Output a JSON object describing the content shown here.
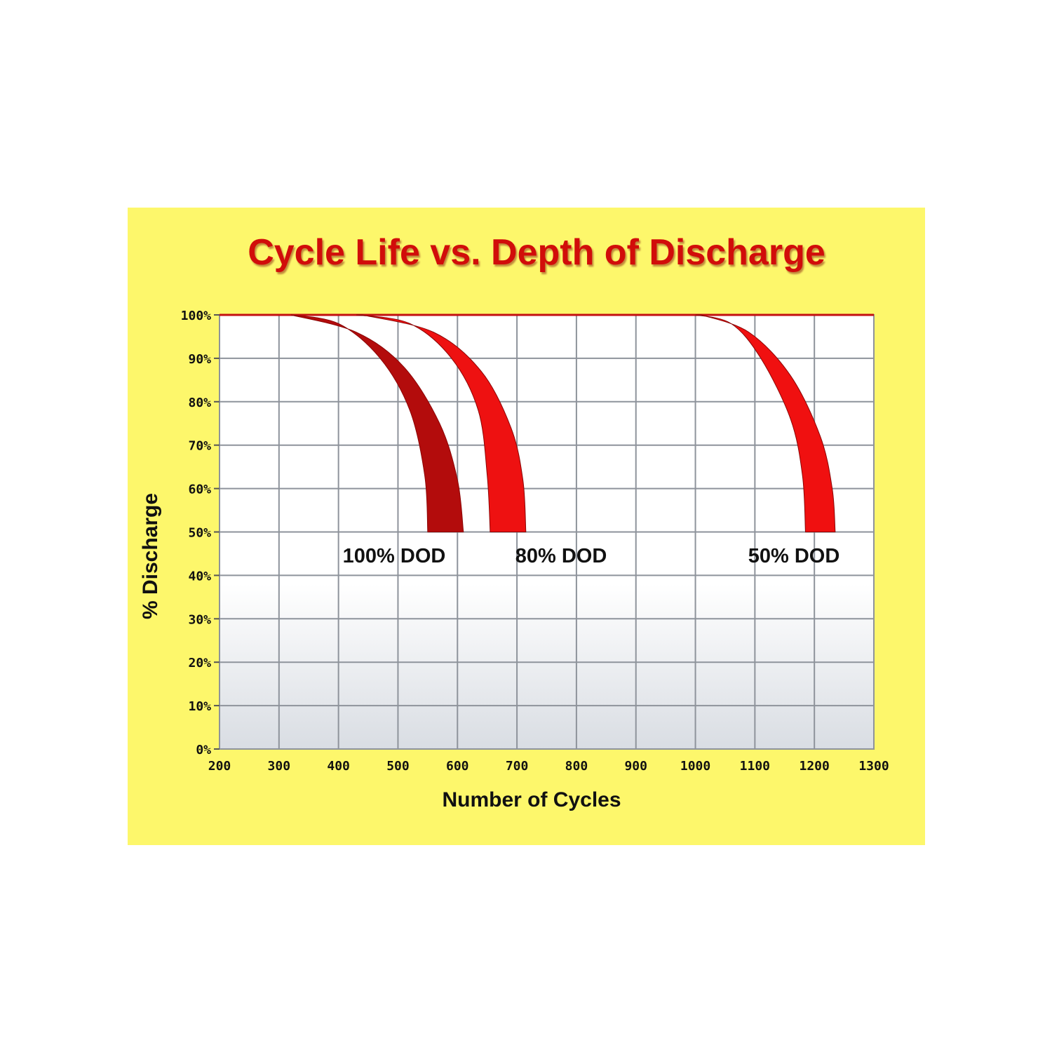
{
  "chart_data": {
    "type": "area",
    "title": "Cycle Life vs. Depth of Discharge",
    "xlabel": "Number of Cycles",
    "ylabel": "% Discharge",
    "xlim": [
      200,
      1300
    ],
    "ylim": [
      0,
      100
    ],
    "x_ticks": [
      "200",
      "300",
      "400",
      "500",
      "600",
      "700",
      "800",
      "900",
      "1000",
      "1100",
      "1200",
      "1300"
    ],
    "y_ticks": [
      "0%",
      "10%",
      "20%",
      "30%",
      "40%",
      "50%",
      "60%",
      "70%",
      "80%",
      "90%",
      "100%"
    ],
    "grid": true,
    "series": [
      {
        "name": "100% DOD",
        "color": "#b30c0c",
        "outer_edge": [
          [
            320,
            100
          ],
          [
            430,
            96
          ],
          [
            510,
            88
          ],
          [
            570,
            75
          ],
          [
            600,
            62
          ],
          [
            610,
            50
          ]
        ],
        "inner_edge": [
          [
            320,
            100
          ],
          [
            400,
            98
          ],
          [
            470,
            90
          ],
          [
            520,
            78
          ],
          [
            545,
            63
          ],
          [
            550,
            50
          ]
        ]
      },
      {
        "name": "80% DOD",
        "color": "#ee1111",
        "outer_edge": [
          [
            440,
            100
          ],
          [
            560,
            96
          ],
          [
            640,
            87
          ],
          [
            690,
            74
          ],
          [
            710,
            62
          ],
          [
            715,
            50
          ]
        ],
        "inner_edge": [
          [
            430,
            100
          ],
          [
            520,
            98
          ],
          [
            590,
            90
          ],
          [
            635,
            78
          ],
          [
            650,
            63
          ],
          [
            655,
            50
          ]
        ]
      },
      {
        "name": "50% DOD",
        "color": "#f01010",
        "outer_edge": [
          [
            1010,
            100
          ],
          [
            1090,
            96
          ],
          [
            1160,
            86
          ],
          [
            1210,
            72
          ],
          [
            1230,
            60
          ],
          [
            1235,
            50
          ]
        ],
        "inner_edge": [
          [
            1000,
            100
          ],
          [
            1060,
            98
          ],
          [
            1110,
            90
          ],
          [
            1160,
            76
          ],
          [
            1180,
            63
          ],
          [
            1185,
            50
          ]
        ]
      }
    ]
  }
}
